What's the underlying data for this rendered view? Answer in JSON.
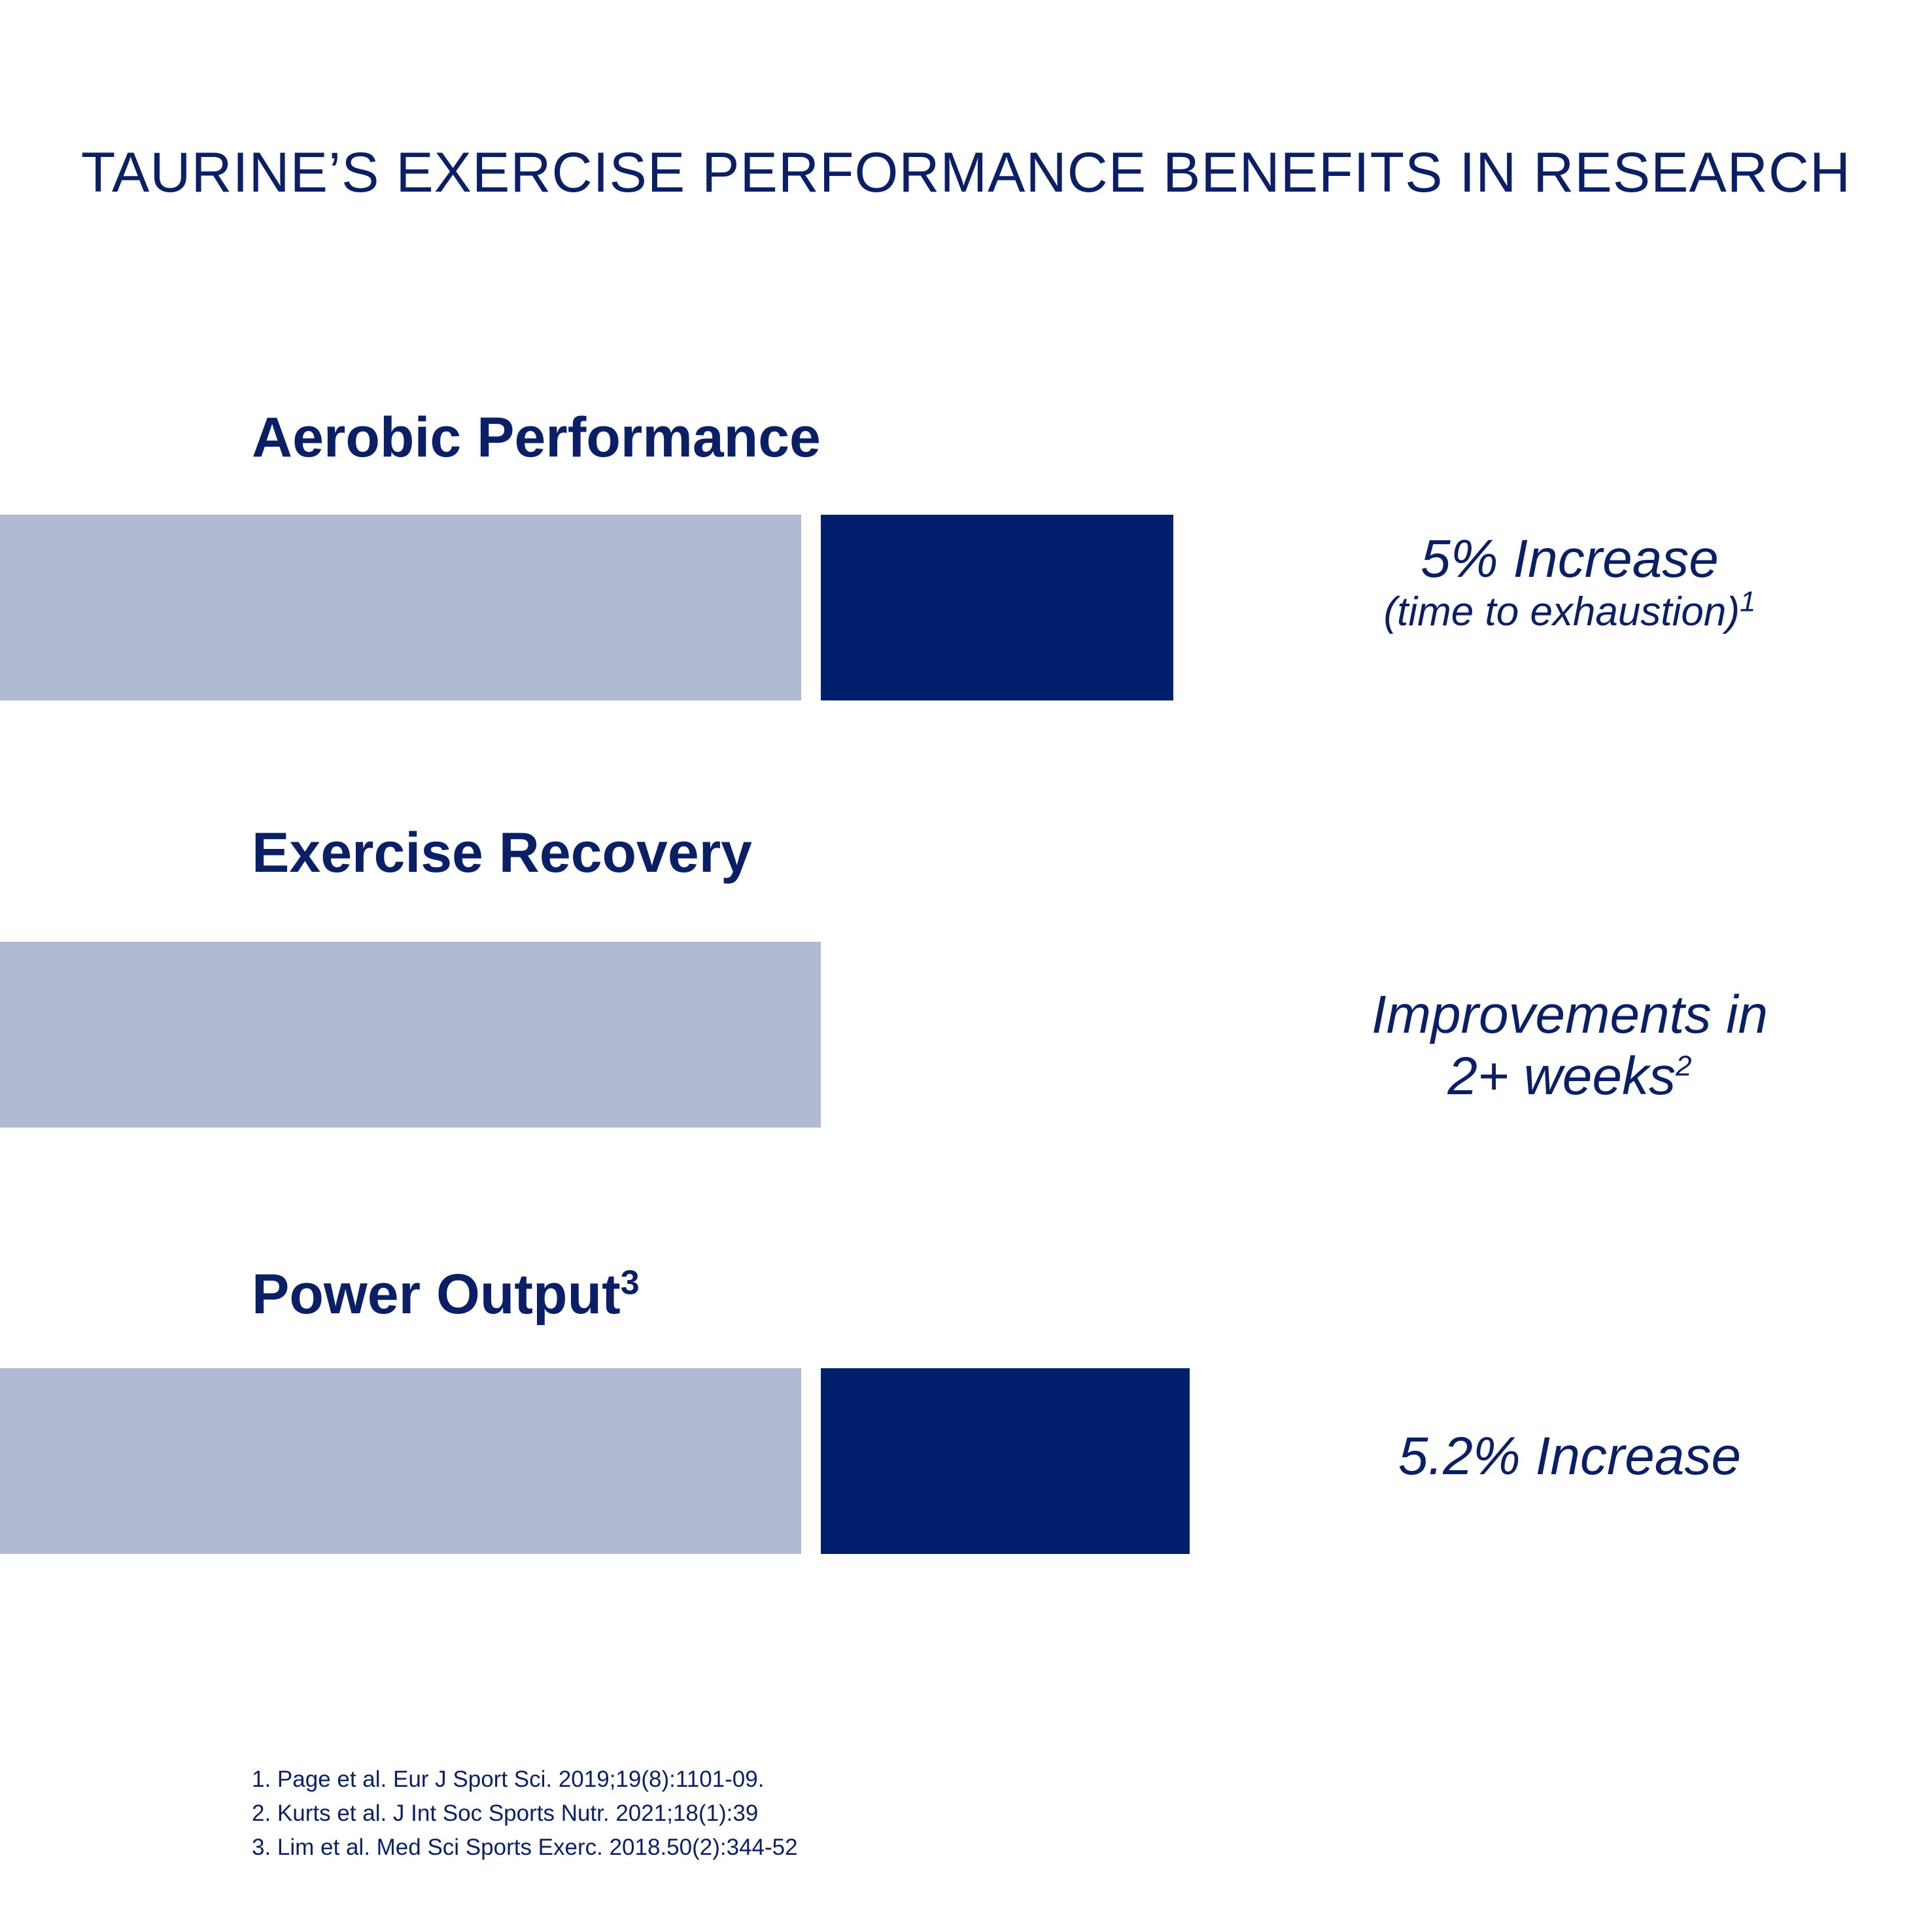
{
  "title": "TAURINE’S EXERCISE PERFORMANCE BENEFITS IN RESEARCH",
  "colors": {
    "baseline": "#b0bad3",
    "gain": "#021f6e",
    "text": "#0b1f66"
  },
  "chart_data": {
    "type": "bar",
    "orientation": "horizontal",
    "stacked": true,
    "categories": [
      "Aerobic Performance",
      "Exercise Recovery",
      "Power Output"
    ],
    "category_superscripts": [
      "",
      "",
      "3"
    ],
    "segments": [
      {
        "baseline": 1,
        "gain": 0.44
      },
      {
        "baseline": 1,
        "gain": 0
      },
      {
        "baseline": 1,
        "gain": 0.46
      }
    ],
    "annotations": [
      {
        "main": "5% Increase",
        "sub": "(time to exhaustion)",
        "sup": "1"
      },
      {
        "line1": "Improvements in",
        "line2": "2+ weeks",
        "sup": "2"
      },
      {
        "main": "5.2% Increase"
      }
    ],
    "grid": false,
    "legend": "none"
  },
  "references": [
    "1. Page et al. Eur J Sport Sci. 2019;19(8):1101-09.",
    "2. Kurts et al. J Int Soc Sports Nutr. 2021;18(1):39",
    "3. Lim et al. Med Sci Sports Exerc. 2018.50(2):344-52"
  ]
}
